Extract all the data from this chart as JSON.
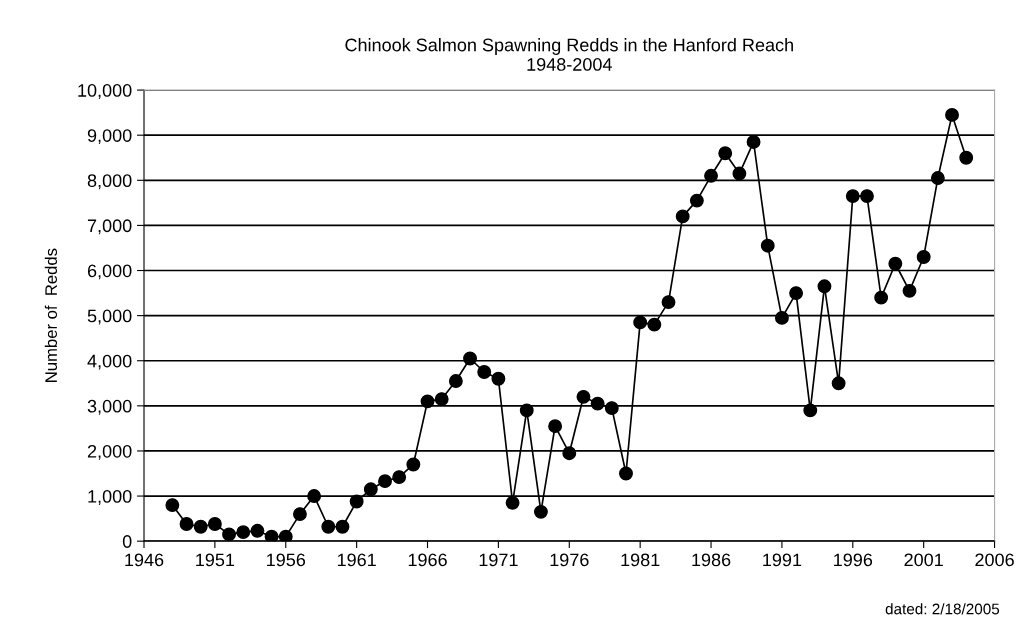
{
  "chart_data": {
    "type": "line",
    "title": "Chinook Salmon Spawning Redds in the Hanford Reach\n1948-2004",
    "ylabel": "Number of  Redds",
    "x": [
      1948,
      1949,
      1950,
      1951,
      1952,
      1953,
      1954,
      1955,
      1956,
      1957,
      1958,
      1959,
      1960,
      1961,
      1962,
      1963,
      1964,
      1965,
      1966,
      1967,
      1968,
      1969,
      1970,
      1971,
      1972,
      1973,
      1974,
      1975,
      1976,
      1977,
      1978,
      1979,
      1980,
      1981,
      1982,
      1983,
      1984,
      1985,
      1986,
      1987,
      1988,
      1989,
      1990,
      1991,
      1992,
      1993,
      1994,
      1995,
      1996,
      1997,
      1998,
      1999,
      2000,
      2001,
      2002,
      2003,
      2004
    ],
    "series": [
      {
        "color": "#000000",
        "values": [
          800,
          380,
          320,
          380,
          150,
          200,
          230,
          100,
          100,
          600,
          1000,
          320,
          320,
          880,
          1150,
          1330,
          1420,
          1700,
          3100,
          3150,
          3550,
          4050,
          3750,
          3600,
          850,
          2900,
          650,
          2550,
          1950,
          3200,
          3050,
          2950,
          1500,
          4850,
          4800,
          5300,
          7200,
          7550,
          8100,
          8600,
          8150,
          8850,
          6550,
          4950,
          5500,
          2900,
          5650,
          3500,
          7650,
          7650,
          5400,
          6150,
          5550,
          6300,
          8050,
          9450,
          8500
        ]
      }
    ],
    "xlim": [
      1946,
      2006
    ],
    "xticks": [
      1946,
      1951,
      1956,
      1961,
      1966,
      1971,
      1976,
      1981,
      1986,
      1991,
      1996,
      2001,
      2006
    ],
    "ylim": [
      0,
      10000
    ],
    "yticks": [
      {
        "value": 0,
        "label": "0"
      },
      {
        "value": 1000,
        "label": "1,000"
      },
      {
        "value": 2000,
        "label": "2,000"
      },
      {
        "value": 3000,
        "label": "3,000"
      },
      {
        "value": 4000,
        "label": "4,000"
      },
      {
        "value": 5000,
        "label": "5,000"
      },
      {
        "value": 6000,
        "label": "6,000"
      },
      {
        "value": 7000,
        "label": "7,000"
      },
      {
        "value": 8000,
        "label": "8,000"
      },
      {
        "value": 9000,
        "label": "9,000"
      },
      {
        "value": 10000,
        "label": "10,000"
      }
    ],
    "grid": "y",
    "marker": "circle",
    "line_style": "solid",
    "annotations": [
      "dated: 2/18/2005"
    ]
  }
}
